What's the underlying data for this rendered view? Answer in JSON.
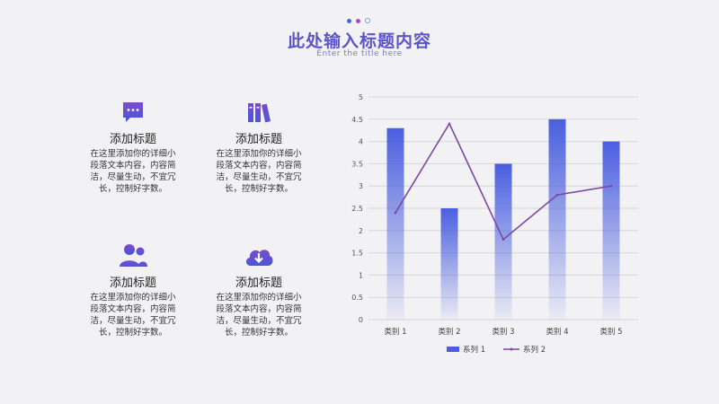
{
  "header": {
    "title": "此处输入标题内容",
    "subtitle": "Enter the title here",
    "dot_colors": [
      "#4b63d8",
      "#a54fb5",
      "#8f8fd0"
    ]
  },
  "features": [
    {
      "title": "添加标题",
      "desc": "在这里添加你的详细小段落文本内容，内容简洁，尽量生动，不宜冗长，控制好字数。",
      "icon": "chat-bubble-icon"
    },
    {
      "title": "添加标题",
      "desc": "在这里添加你的详细小段落文本内容，内容简洁，尽量生动，不宜冗长，控制好字数。",
      "icon": "books-icon"
    },
    {
      "title": "添加标题",
      "desc": "在这里添加你的详细小段落文本内容，内容简洁，尽量生动，不宜冗长，控制好字数。",
      "icon": "users-icon"
    },
    {
      "title": "添加标题",
      "desc": "在这里添加你的详细小段落文本内容，内容简洁，尽量生动，不宜冗长，控制好字数。",
      "icon": "cloud-download-icon"
    }
  ],
  "chart_data": {
    "type": "bar",
    "categories": [
      "类别 1",
      "类别 2",
      "类别 3",
      "类别 4",
      "类别 5"
    ],
    "series": [
      {
        "name": "系列 1",
        "type": "bar",
        "values": [
          4.3,
          2.5,
          3.5,
          4.5,
          4.0
        ],
        "color": "#4a5fe0"
      },
      {
        "name": "系列 2",
        "type": "line",
        "values": [
          2.4,
          4.4,
          1.8,
          2.8,
          3.0
        ],
        "color": "#7d48a8"
      }
    ],
    "ylim": [
      0,
      5
    ],
    "yticks": [
      "0",
      "0.5",
      "1",
      "1.5",
      "2",
      "2.5",
      "3",
      "3.5",
      "4",
      "4.5",
      "5"
    ],
    "grid": true,
    "legend": "bottom"
  }
}
